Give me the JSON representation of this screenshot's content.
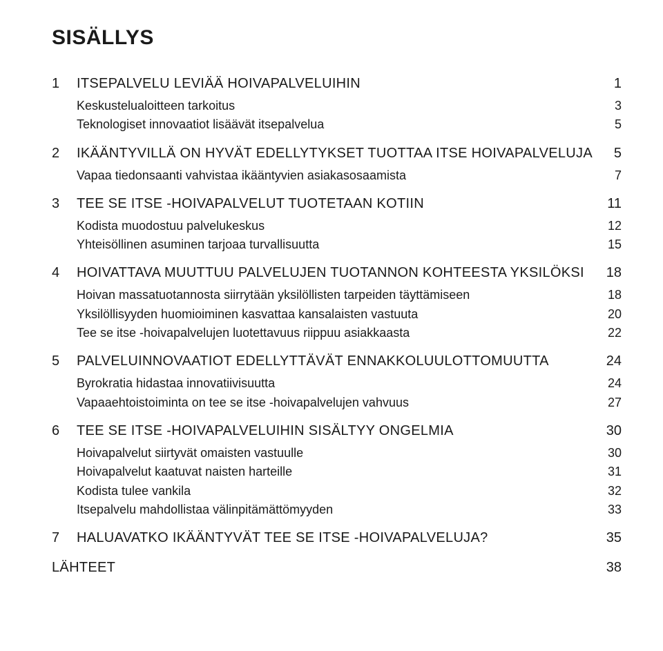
{
  "title": "SISÄLLYS",
  "chapters": [
    {
      "num": "1",
      "label": "ITSEPALVELU LEVIÄÄ HOIVAPALVELUIHIN",
      "page": "1",
      "subs": [
        {
          "label": "Keskustelualoitteen tarkoitus",
          "page": "3"
        },
        {
          "label": "Teknologiset innovaatiot lisäävät itsepalvelua",
          "page": "5"
        }
      ]
    },
    {
      "num": "2",
      "label": "IKÄÄNTYVILLÄ ON HYVÄT EDELLYTYKSET TUOTTAA ITSE HOIVAPALVELUJA",
      "page": "5",
      "subs": [
        {
          "label": "Vapaa tiedonsaanti vahvistaa ikääntyvien asiakasosaamista",
          "page": "7"
        }
      ]
    },
    {
      "num": "3",
      "label": "TEE SE ITSE -HOIVAPALVELUT TUOTETAAN KOTIIN",
      "page": "11",
      "subs": [
        {
          "label": "Kodista muodostuu palvelukeskus",
          "page": "12"
        },
        {
          "label": "Yhteisöllinen asuminen tarjoaa turvallisuutta",
          "page": "15"
        }
      ]
    },
    {
      "num": "4",
      "label": "HOIVATTAVA MUUTTUU PALVELUJEN TUOTANNON KOHTEESTA YKSILÖKSI",
      "page": "18",
      "subs": [
        {
          "label": "Hoivan massatuotannosta siirrytään yksilöllisten tarpeiden täyttämiseen",
          "page": "18"
        },
        {
          "label": "Yksilöllisyyden huomioiminen kasvattaa kansalaisten vastuuta",
          "page": "20"
        },
        {
          "label": "Tee se itse -hoivapalvelujen luotettavuus riippuu asiakkaasta",
          "page": "22"
        }
      ]
    },
    {
      "num": "5",
      "label": "PALVELUINNOVAATIOT EDELLYTTÄVÄT ENNAKKOLUULOTTOMUUTTA",
      "page": "24",
      "subs": [
        {
          "label": "Byrokratia hidastaa innovatiivisuutta",
          "page": "24"
        },
        {
          "label": "Vapaaehtoistoiminta on tee se itse -hoivapalvelujen vahvuus",
          "page": "27"
        }
      ]
    },
    {
      "num": "6",
      "label": "TEE SE ITSE -HOIVAPALVELUIHIN SISÄLTYY ONGELMIA",
      "page": "30",
      "subs": [
        {
          "label": "Hoivapalvelut siirtyvät omaisten vastuulle",
          "page": "30"
        },
        {
          "label": "Hoivapalvelut kaatuvat naisten harteille",
          "page": "31"
        },
        {
          "label": "Kodista tulee vankila",
          "page": "32"
        },
        {
          "label": "Itsepalvelu mahdollistaa välinpitämättömyyden",
          "page": "33"
        }
      ]
    },
    {
      "num": "7",
      "label": "HALUAVATKO IKÄÄNTYVÄT TEE SE ITSE -HOIVAPALVELUJA?",
      "page": "35",
      "subs": []
    }
  ],
  "lahteet": {
    "label": "LÄHTEET",
    "page": "38"
  }
}
